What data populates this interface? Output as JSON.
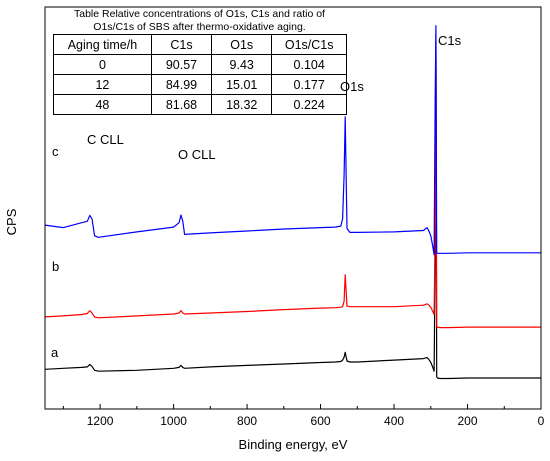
{
  "chart_data": {
    "type": "line",
    "xlabel": "Binding energy, eV",
    "ylabel": "CPS",
    "xlim": [
      1350,
      0
    ],
    "x_reversed": true,
    "xticks": [
      1200,
      1000,
      800,
      600,
      400,
      200,
      0
    ],
    "yticks_shown": false,
    "grid": false,
    "legend": "none",
    "series": [
      {
        "name": "a",
        "color": "#000000",
        "x": [
          1350,
          1300,
          1250,
          1235,
          1228,
          1222,
          1215,
          1205,
          1100,
          1000,
          985,
          980,
          975,
          970,
          900,
          800,
          700,
          600,
          560,
          545,
          540,
          536,
          533,
          528,
          520,
          500,
          400,
          320,
          310,
          305,
          300,
          295,
          291,
          288,
          286,
          284,
          282,
          275,
          250,
          200,
          100,
          0
        ],
        "y": [
          0.2,
          0.22,
          0.24,
          0.25,
          0.3,
          0.26,
          0.18,
          0.16,
          0.18,
          0.22,
          0.24,
          0.28,
          0.24,
          0.22,
          0.25,
          0.28,
          0.31,
          0.34,
          0.35,
          0.36,
          0.39,
          0.45,
          0.55,
          0.37,
          0.35,
          0.35,
          0.39,
          0.42,
          0.44,
          0.4,
          0.34,
          0.25,
          0.16,
          2.5,
          6.95,
          0.05,
          0.02,
          0.01,
          0.01,
          0.02,
          0.02,
          0.02
        ]
      },
      {
        "name": "b",
        "color": "#ff0000",
        "x": [
          1350,
          1300,
          1250,
          1235,
          1228,
          1222,
          1215,
          1205,
          1100,
          1000,
          985,
          980,
          975,
          970,
          900,
          800,
          700,
          600,
          560,
          545,
          540,
          536,
          533,
          528,
          520,
          500,
          400,
          320,
          310,
          305,
          300,
          295,
          291,
          288,
          286,
          284,
          282,
          275,
          250,
          200,
          100,
          0
        ],
        "y": [
          1.28,
          1.3,
          1.33,
          1.35,
          1.41,
          1.36,
          1.28,
          1.26,
          1.3,
          1.34,
          1.36,
          1.41,
          1.36,
          1.34,
          1.36,
          1.39,
          1.43,
          1.46,
          1.47,
          1.48,
          1.49,
          1.6,
          2.15,
          1.5,
          1.49,
          1.49,
          1.49,
          1.52,
          1.55,
          1.52,
          1.48,
          1.4,
          1.33,
          3.2,
          7.1,
          1.09,
          1.07,
          1.06,
          1.06,
          1.07,
          1.07,
          1.07
        ]
      },
      {
        "name": "c",
        "color": "#0000ff",
        "x": [
          1350,
          1300,
          1250,
          1235,
          1228,
          1222,
          1215,
          1205,
          1100,
          1000,
          985,
          980,
          975,
          970,
          900,
          800,
          700,
          600,
          560,
          545,
          540,
          536,
          533,
          528,
          520,
          500,
          400,
          320,
          310,
          305,
          300,
          295,
          291,
          288,
          286,
          284,
          282,
          275,
          250,
          200,
          100,
          0
        ],
        "y": [
          3.17,
          3.12,
          3.22,
          3.25,
          3.37,
          3.3,
          2.95,
          2.92,
          3.03,
          3.13,
          3.22,
          3.38,
          3.25,
          2.98,
          3.01,
          3.05,
          3.09,
          3.12,
          3.13,
          3.15,
          3.3,
          4.2,
          5.4,
          3.1,
          3.02,
          3.02,
          3.03,
          3.06,
          3.12,
          3.05,
          2.95,
          2.75,
          2.56,
          5.8,
          7.28,
          2.6,
          2.59,
          2.59,
          2.59,
          2.6,
          2.6,
          2.6
        ]
      }
    ],
    "annotations": [
      {
        "text": "C CLL",
        "x": 1235
      },
      {
        "text": "O CLL",
        "x": 980
      },
      {
        "text": "O1s",
        "x": 533
      },
      {
        "text": "C1s",
        "x": 286
      },
      {
        "text": "a",
        "x": 1320
      },
      {
        "text": "b",
        "x": 1320
      },
      {
        "text": "c",
        "x": 1320
      }
    ],
    "inset_table": {
      "title_line1": "Table Relative concentrations of O1s, C1s and ratio of",
      "title_line2": "O1s/C1s of SBS after thermo-oxidative aging.",
      "headers": [
        "Aging time/h",
        "C1s",
        "O1s",
        "O1s/C1s"
      ],
      "rows": [
        [
          "0",
          "90.57",
          "9.43",
          "0.104"
        ],
        [
          "12",
          "84.99",
          "15.01",
          "0.177"
        ],
        [
          "48",
          "81.68",
          "18.32",
          "0.224"
        ]
      ]
    }
  }
}
